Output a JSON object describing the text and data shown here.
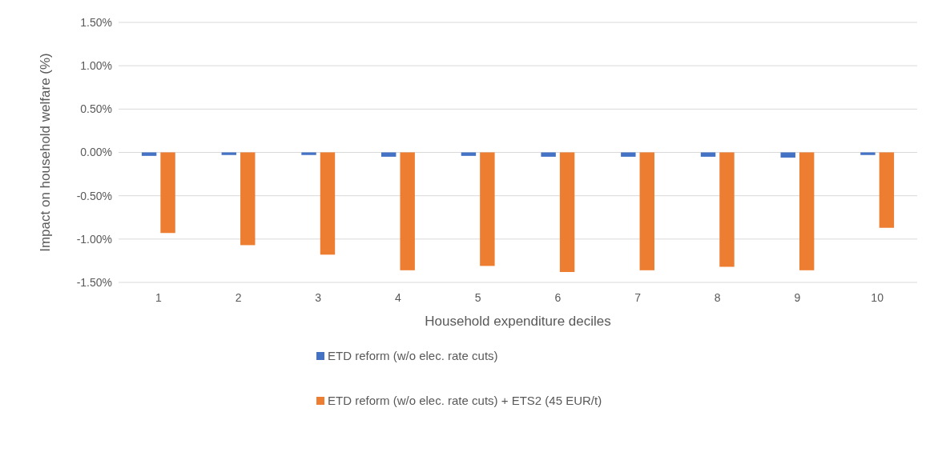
{
  "chart_data": {
    "type": "bar",
    "xlabel": "Household expenditure deciles",
    "ylabel": "Impact on household welfare (%)",
    "categories": [
      "1",
      "2",
      "3",
      "4",
      "5",
      "6",
      "7",
      "8",
      "9",
      "10"
    ],
    "series": [
      {
        "name": "ETD reform (w/o elec. rate cuts)",
        "color": "#4472c4",
        "values": [
          -0.04,
          -0.03,
          -0.03,
          -0.05,
          -0.04,
          -0.05,
          -0.05,
          -0.05,
          -0.06,
          -0.03
        ]
      },
      {
        "name": "ETD reform (w/o elec. rate cuts) + ETS2 (45 EUR/t)",
        "color": "#ed7d31",
        "values": [
          -0.93,
          -1.07,
          -1.18,
          -1.36,
          -1.31,
          -1.38,
          -1.36,
          -1.32,
          -1.36,
          -0.87
        ]
      }
    ],
    "ylim": [
      -1.5,
      1.5
    ],
    "yticks": [
      {
        "value": -1.5,
        "label": "-1.50%"
      },
      {
        "value": -1,
        "label": "-1.00%"
      },
      {
        "value": -0.5,
        "label": "-0.50%"
      },
      {
        "value": 0,
        "label": "0.00%"
      },
      {
        "value": 0.5,
        "label": "0.50%"
      },
      {
        "value": 1,
        "label": "1.00%"
      },
      {
        "value": 1.5,
        "label": "1.50%"
      }
    ],
    "grid": "y",
    "legend": "bottom"
  }
}
